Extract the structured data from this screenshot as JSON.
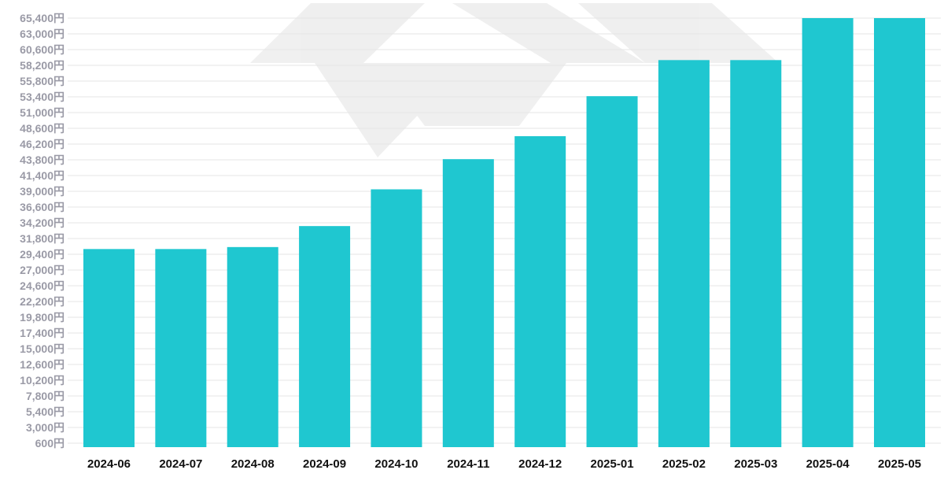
{
  "chart_data": {
    "type": "bar",
    "categories": [
      "2024-06",
      "2024-07",
      "2024-08",
      "2024-09",
      "2024-10",
      "2024-11",
      "2024-12",
      "2025-01",
      "2025-02",
      "2025-03",
      "2025-04",
      "2025-05"
    ],
    "values": [
      30200,
      30200,
      30500,
      33700,
      39300,
      43900,
      47400,
      53500,
      59000,
      59000,
      65400,
      65400
    ],
    "ylim": [
      600,
      65400
    ],
    "y_ticks": [
      600,
      3000,
      5400,
      7800,
      10200,
      12600,
      15000,
      17400,
      19800,
      22200,
      24600,
      27000,
      29400,
      31800,
      34200,
      36600,
      39000,
      41400,
      43800,
      46200,
      48600,
      51000,
      53400,
      55800,
      58200,
      60600,
      63000,
      65400
    ],
    "y_tick_labels": [
      "600円",
      "3,000円",
      "5,400円",
      "7,800円",
      "10,200円",
      "12,600円",
      "15,000円",
      "17,400円",
      "19,800円",
      "22,200円",
      "24,600円",
      "27,000円",
      "29,400円",
      "31,800円",
      "34,200円",
      "36,600円",
      "39,000円",
      "41,400円",
      "43,800円",
      "46,200円",
      "48,600円",
      "51,000円",
      "53,400円",
      "55,800円",
      "58,200円",
      "60,600円",
      "63,000円",
      "65,400円"
    ],
    "grid": true,
    "title": "",
    "xlabel": "",
    "ylabel": "",
    "bar_color": "#1fc7d0",
    "watermark": "logo-watermark"
  }
}
